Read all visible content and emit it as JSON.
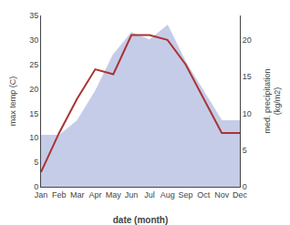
{
  "chart_data": {
    "type": "line",
    "categories": [
      "Jan",
      "Feb",
      "Mar",
      "Apr",
      "May",
      "Jun",
      "Jul",
      "Aug",
      "Sep",
      "Oct",
      "Nov",
      "Dec"
    ],
    "series": [
      {
        "type": "area",
        "color": "#c5cce8",
        "axis": "y2",
        "values": [
          7,
          7,
          9,
          13,
          18,
          21,
          20,
          22,
          17,
          13,
          9,
          9
        ]
      },
      {
        "type": "line",
        "color": "#aa3333",
        "values": [
          3,
          11,
          18,
          24,
          23,
          31,
          31,
          30,
          25,
          18,
          11,
          11
        ]
      }
    ],
    "xlabel": "date (month)",
    "ylabel": "max temp (C)",
    "y2label": "med. precipitation\n(kg/m2)",
    "ylim": [
      0,
      35
    ],
    "yticks": [
      0,
      5,
      10,
      15,
      20,
      25,
      30,
      35
    ],
    "y2lim": [
      0,
      23.33
    ],
    "y2ticks": [
      0,
      5,
      10,
      15,
      20
    ],
    "grid": false
  }
}
